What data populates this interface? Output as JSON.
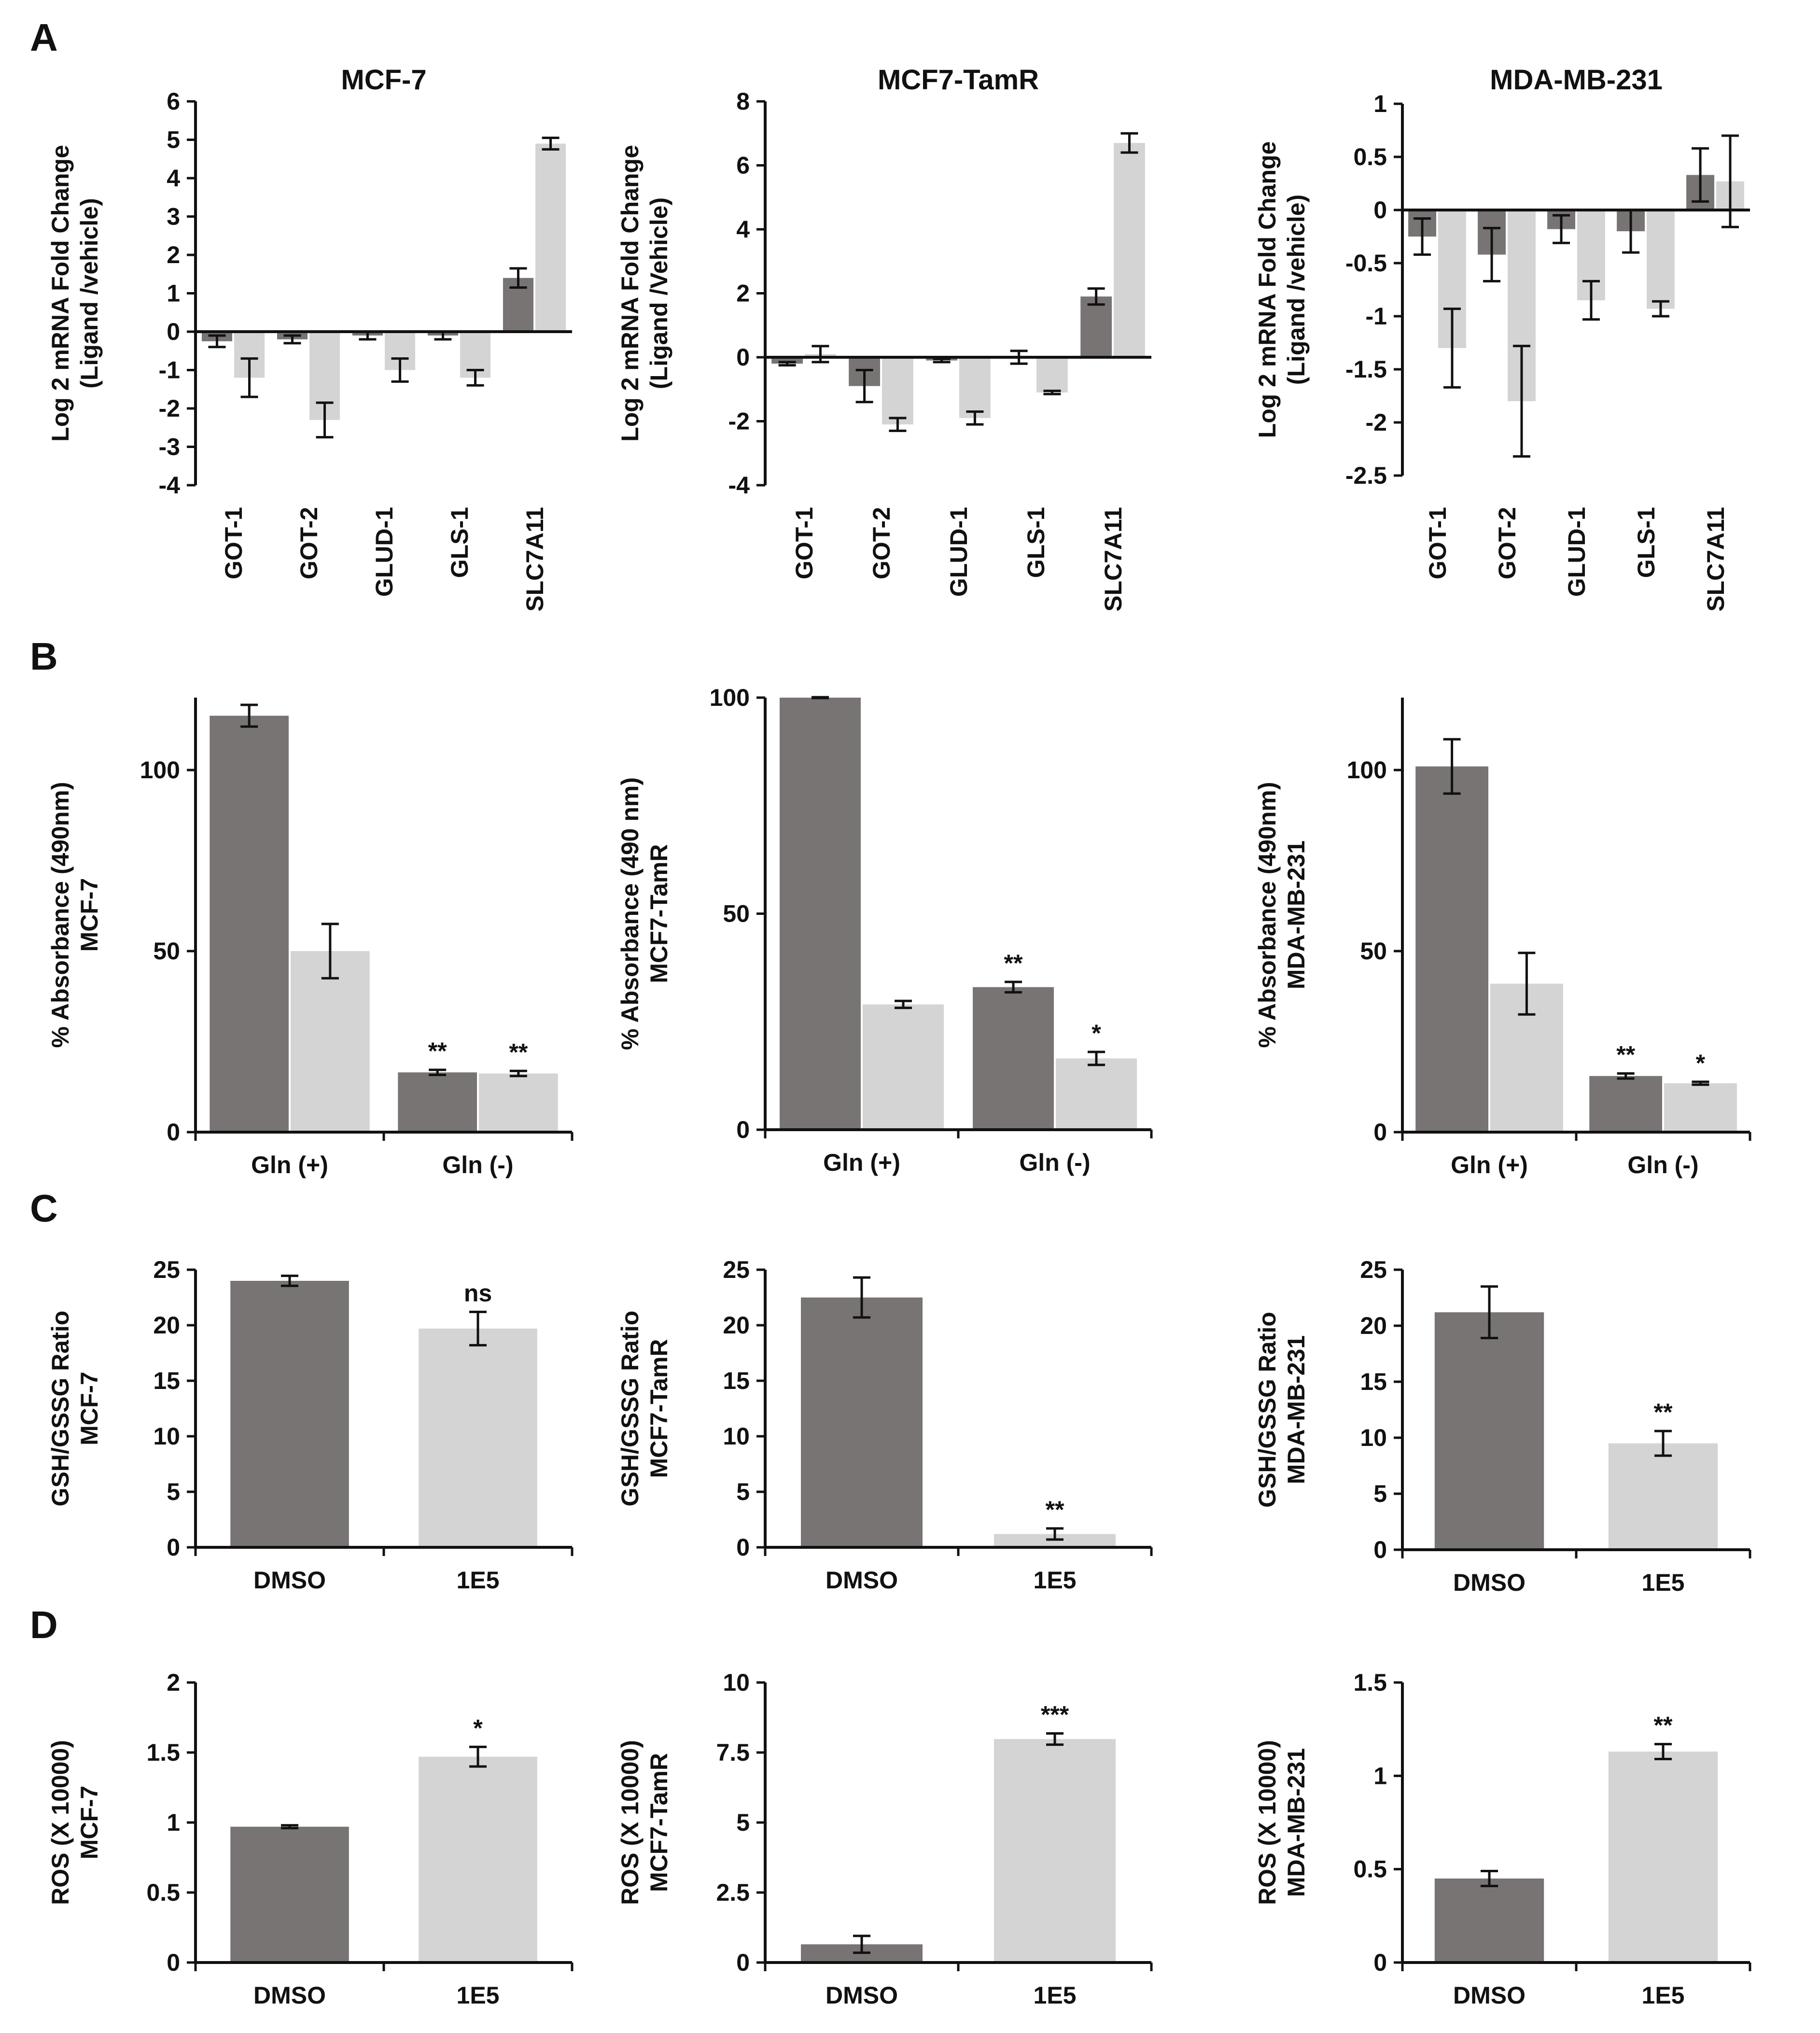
{
  "panels": [
    "A",
    "B",
    "C",
    "D"
  ],
  "colors": {
    "dark": "#787474",
    "light": "#d4d4d4",
    "axis": "#111111"
  },
  "chart_data": [
    {
      "id": "A1",
      "panel": "A",
      "type": "bar",
      "title": "MCF-7",
      "ylabel": [
        "Log 2 mRNA Fold Change",
        "(Ligand /vehicle)"
      ],
      "ylim": [
        -4,
        6
      ],
      "yticks": [
        6,
        5,
        4,
        3,
        2,
        1,
        0,
        -1,
        -2,
        -3,
        -4
      ],
      "categories": [
        "GOT-1",
        "GOT-2",
        "GLUD-1",
        "GLS-1",
        "SLC7A11"
      ],
      "cat_rotated": true,
      "series": [
        {
          "name": "series 1",
          "color": "dark",
          "values": [
            -0.25,
            -0.2,
            -0.1,
            -0.1,
            1.4
          ],
          "errors": [
            0.15,
            0.1,
            0.1,
            0.1,
            0.25
          ]
        },
        {
          "name": "series 2",
          "color": "light",
          "values": [
            -1.2,
            -2.3,
            -1.0,
            -1.2,
            4.9
          ],
          "errors": [
            0.5,
            0.45,
            0.3,
            0.2,
            0.15
          ]
        }
      ],
      "sig": [
        [
          "",
          "",
          "",
          "",
          ""
        ],
        [
          "",
          "",
          "",
          "",
          ""
        ]
      ]
    },
    {
      "id": "A2",
      "panel": "A",
      "type": "bar",
      "title": "MCF7-TamR",
      "ylabel": [
        "Log 2 mRNA Fold Change",
        "(Ligand /Vehicle)"
      ],
      "ylim": [
        -4,
        8
      ],
      "yticks": [
        8,
        6,
        4,
        2,
        0,
        -2,
        -4
      ],
      "categories": [
        "GOT-1",
        "GOT-2",
        "GLUD-1",
        "GLS-1",
        "SLC7A11"
      ],
      "cat_rotated": true,
      "series": [
        {
          "name": "series 1",
          "color": "dark",
          "values": [
            -0.2,
            -0.9,
            -0.1,
            0.0,
            1.9
          ],
          "errors": [
            0.05,
            0.5,
            0.05,
            0.2,
            0.25
          ]
        },
        {
          "name": "series 2",
          "color": "light",
          "values": [
            0.1,
            -2.1,
            -1.9,
            -1.1,
            6.7
          ],
          "errors": [
            0.25,
            0.2,
            0.2,
            0.05,
            0.3
          ]
        }
      ],
      "sig": [
        [
          "",
          "",
          "",
          "",
          ""
        ],
        [
          "",
          "",
          "",
          "",
          ""
        ]
      ]
    },
    {
      "id": "A3",
      "panel": "A",
      "type": "bar",
      "title": "MDA-MB-231",
      "ylabel": [
        "Log 2 mRNA Fold Change",
        "(Ligand /vehicle)"
      ],
      "ylim": [
        -2.5,
        1
      ],
      "yticks": [
        1,
        0.5,
        0,
        -0.5,
        -1,
        -1.5,
        -2,
        -2.5
      ],
      "categories": [
        "GOT-1",
        "GOT-2",
        "GLUD-1",
        "GLS-1",
        "SLC7A11"
      ],
      "cat_rotated": true,
      "series": [
        {
          "name": "series 1",
          "color": "dark",
          "values": [
            -0.25,
            -0.42,
            -0.18,
            -0.2,
            0.33
          ],
          "errors": [
            0.17,
            0.25,
            0.13,
            0.2,
            0.25
          ]
        },
        {
          "name": "series 2",
          "color": "light",
          "values": [
            -1.3,
            -1.8,
            -0.85,
            -0.93,
            0.27
          ],
          "errors": [
            0.37,
            0.52,
            0.18,
            0.07,
            0.43
          ]
        }
      ],
      "sig": [
        [
          "",
          "",
          "",
          "",
          ""
        ],
        [
          "",
          "",
          "",
          "",
          ""
        ]
      ]
    },
    {
      "id": "B1",
      "panel": "B",
      "type": "bar",
      "title": "",
      "ylabel": [
        "% Absorbance (490nm)",
        "MCF-7"
      ],
      "ylim": [
        0,
        120
      ],
      "yticks": [
        100,
        50,
        0
      ],
      "categories": [
        "Gln (+)",
        "Gln (-)"
      ],
      "cat_rotated": false,
      "series": [
        {
          "name": "series 1",
          "color": "dark",
          "values": [
            115,
            16.5
          ],
          "errors": [
            3,
            0.7
          ]
        },
        {
          "name": "series 2",
          "color": "light",
          "values": [
            50,
            16.2
          ],
          "errors": [
            7.5,
            0.7
          ]
        }
      ],
      "sig": [
        [
          "",
          "**"
        ],
        [
          "",
          "**"
        ]
      ]
    },
    {
      "id": "B2",
      "panel": "B",
      "type": "bar",
      "title": "",
      "ylabel": [
        "% Absorbance (490 nm)",
        "MCF7-TamR"
      ],
      "ylim": [
        0,
        100
      ],
      "yticks": [
        100,
        50,
        0
      ],
      "categories": [
        "Gln (+)",
        "Gln (-)"
      ],
      "cat_rotated": false,
      "series": [
        {
          "name": "series 1",
          "color": "dark",
          "values": [
            100,
            33
          ],
          "errors": [
            0.1,
            1.2
          ]
        },
        {
          "name": "series 2",
          "color": "light",
          "values": [
            29,
            16.5
          ],
          "errors": [
            0.8,
            1.5
          ]
        }
      ],
      "sig": [
        [
          "",
          "**"
        ],
        [
          "",
          "*"
        ]
      ]
    },
    {
      "id": "B3",
      "panel": "B",
      "type": "bar",
      "title": "",
      "ylabel": [
        "% Absorbance (490nm)",
        "MDA-MB-231"
      ],
      "ylim": [
        0,
        120
      ],
      "yticks": [
        100,
        50,
        0
      ],
      "categories": [
        "Gln (+)",
        "Gln (-)"
      ],
      "cat_rotated": false,
      "series": [
        {
          "name": "series 1",
          "color": "dark",
          "values": [
            101,
            15.5
          ],
          "errors": [
            7.5,
            0.7
          ]
        },
        {
          "name": "series 2",
          "color": "light",
          "values": [
            41,
            13.5
          ],
          "errors": [
            8.5,
            0.4
          ]
        }
      ],
      "sig": [
        [
          "",
          "**"
        ],
        [
          "",
          "*"
        ]
      ]
    },
    {
      "id": "C1",
      "panel": "C",
      "type": "bar",
      "title": "",
      "ylabel": [
        "GSH/GSSG Ratio",
        "MCF-7"
      ],
      "ylim": [
        0,
        25
      ],
      "yticks": [
        25,
        20,
        15,
        10,
        5,
        0
      ],
      "categories": [
        "DMSO",
        "1E5"
      ],
      "cat_rotated": false,
      "series": [
        {
          "name": "values",
          "colors": [
            "dark",
            "light"
          ],
          "values": [
            24.0,
            19.7
          ],
          "errors": [
            0.45,
            1.5
          ]
        }
      ],
      "sig": [
        [
          "",
          "ns"
        ]
      ]
    },
    {
      "id": "C2",
      "panel": "C",
      "type": "bar",
      "title": "",
      "ylabel": [
        "GSH/GSSG Ratio",
        "MCF7-TamR"
      ],
      "ylim": [
        0,
        25
      ],
      "yticks": [
        25,
        20,
        15,
        10,
        5,
        0
      ],
      "categories": [
        "DMSO",
        "1E5"
      ],
      "cat_rotated": false,
      "series": [
        {
          "name": "values",
          "colors": [
            "dark",
            "light"
          ],
          "values": [
            22.5,
            1.2
          ],
          "errors": [
            1.8,
            0.5
          ]
        }
      ],
      "sig": [
        [
          "",
          "**"
        ]
      ]
    },
    {
      "id": "C3",
      "panel": "C",
      "type": "bar",
      "title": "",
      "ylabel": [
        "GSH/GSSG Ratio",
        "MDA-MB-231"
      ],
      "ylim": [
        0,
        25
      ],
      "yticks": [
        25,
        20,
        15,
        10,
        5,
        0
      ],
      "categories": [
        "DMSO",
        "1E5"
      ],
      "cat_rotated": false,
      "series": [
        {
          "name": "values",
          "colors": [
            "dark",
            "light"
          ],
          "values": [
            21.2,
            9.5
          ],
          "errors": [
            2.3,
            1.1
          ]
        }
      ],
      "sig": [
        [
          "",
          "**"
        ]
      ]
    },
    {
      "id": "D1",
      "panel": "D",
      "type": "bar",
      "title": "",
      "ylabel": [
        "ROS (X 10000)",
        "MCF-7"
      ],
      "ylim": [
        0,
        2
      ],
      "yticks": [
        2,
        1.5,
        1,
        0.5,
        0
      ],
      "categories": [
        "DMSO",
        "1E5"
      ],
      "cat_rotated": false,
      "series": [
        {
          "name": "values",
          "colors": [
            "dark",
            "light"
          ],
          "values": [
            0.97,
            1.47
          ],
          "errors": [
            0.01,
            0.07
          ]
        }
      ],
      "sig": [
        [
          "",
          "*"
        ]
      ]
    },
    {
      "id": "D2",
      "panel": "D",
      "type": "bar",
      "title": "",
      "ylabel": [
        "ROS (X 10000)",
        "MCF7-TamR"
      ],
      "ylim": [
        0,
        10
      ],
      "yticks": [
        10,
        7.5,
        5,
        2.5,
        0
      ],
      "categories": [
        "DMSO",
        "1E5"
      ],
      "cat_rotated": false,
      "series": [
        {
          "name": "values",
          "colors": [
            "dark",
            "light"
          ],
          "values": [
            0.65,
            7.98
          ],
          "errors": [
            0.3,
            0.2
          ]
        }
      ],
      "sig": [
        [
          "",
          "***"
        ]
      ]
    },
    {
      "id": "D3",
      "panel": "D",
      "type": "bar",
      "title": "",
      "ylabel": [
        "ROS (X 10000)",
        "MDA-MB-231"
      ],
      "ylim": [
        0,
        1.5
      ],
      "yticks": [
        1.5,
        1,
        0.5,
        0
      ],
      "categories": [
        "DMSO",
        "1E5"
      ],
      "cat_rotated": false,
      "series": [
        {
          "name": "values",
          "colors": [
            "dark",
            "light"
          ],
          "values": [
            0.45,
            1.13
          ],
          "errors": [
            0.04,
            0.04
          ]
        }
      ],
      "sig": [
        [
          "",
          "**"
        ]
      ]
    }
  ]
}
